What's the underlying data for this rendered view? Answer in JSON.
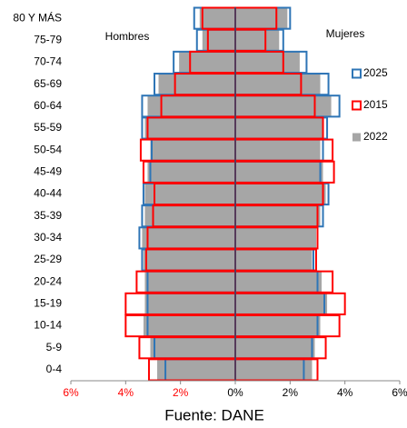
{
  "chart_data": {
    "type": "pyramid",
    "left_label": "Hombres",
    "right_label": "Mujeres",
    "source": "Fuente: DANE",
    "categories": [
      "80 Y MÁS",
      "75-79",
      "70-74",
      "65-69",
      "60-64",
      "55-59",
      "50-54",
      "45-49",
      "40-44",
      "35-39",
      "30-34",
      "25-29",
      "20-24",
      "15-19",
      "10-14",
      "5-9",
      "0-4"
    ],
    "series": [
      {
        "name": "2025",
        "color": "#2e75b6",
        "filled": false,
        "hombres": [
          -1.5,
          -1.4,
          -2.25,
          -2.95,
          -3.4,
          -3.4,
          -3.05,
          -3.1,
          -3.35,
          -3.4,
          -3.5,
          -3.4,
          -3.2,
          -3.2,
          -3.2,
          -2.95,
          -2.55
        ],
        "mujeres": [
          2.0,
          1.75,
          2.6,
          3.4,
          3.8,
          3.35,
          3.2,
          3.1,
          3.4,
          3.2,
          3.0,
          2.85,
          3.0,
          3.25,
          3.0,
          2.8,
          2.5
        ]
      },
      {
        "name": "2015",
        "color": "#ff0000",
        "filled": false,
        "hombres": [
          -1.2,
          -1.0,
          -1.65,
          -2.2,
          -2.7,
          -3.2,
          -3.45,
          -3.35,
          -2.95,
          -3.0,
          -3.2,
          -3.25,
          -3.6,
          -4.0,
          -4.0,
          -3.5,
          -3.15
        ],
        "mujeres": [
          1.5,
          1.1,
          1.75,
          2.4,
          2.9,
          3.2,
          3.55,
          3.6,
          3.2,
          3.0,
          3.0,
          2.95,
          3.55,
          4.0,
          3.8,
          3.3,
          3.0
        ]
      },
      {
        "name": "2022",
        "color": "#a6a6a6",
        "filled": true,
        "hombres": [
          -1.3,
          -1.2,
          -2.05,
          -2.8,
          -3.2,
          -3.3,
          -3.1,
          -3.2,
          -3.3,
          -3.3,
          -3.4,
          -3.35,
          -3.3,
          -3.3,
          -3.35,
          -3.1,
          -2.85
        ],
        "mujeres": [
          1.9,
          1.6,
          2.35,
          3.1,
          3.5,
          3.2,
          3.1,
          3.2,
          3.3,
          3.1,
          2.95,
          2.8,
          3.15,
          3.35,
          3.1,
          2.9,
          2.8
        ]
      }
    ],
    "xlim": [
      -6,
      6
    ],
    "xticks": [
      {
        "value": -6,
        "label": "6%"
      },
      {
        "value": -4,
        "label": "4%"
      },
      {
        "value": -2,
        "label": "2%"
      },
      {
        "value": 0,
        "label": "0%"
      },
      {
        "value": 2,
        "label": "2%"
      },
      {
        "value": 4,
        "label": "4%"
      },
      {
        "value": 6,
        "label": "6%"
      }
    ]
  }
}
